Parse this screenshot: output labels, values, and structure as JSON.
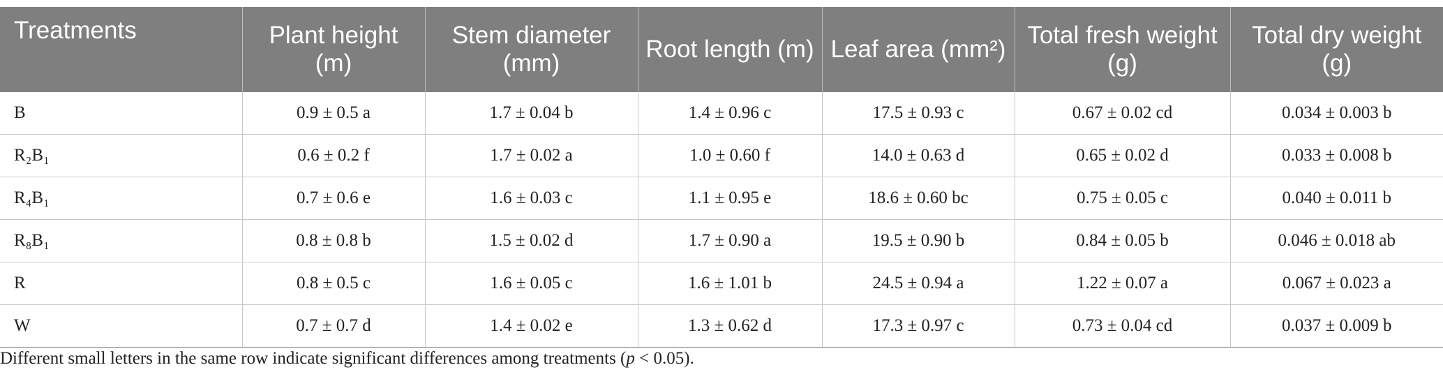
{
  "table": {
    "header": [
      "Treatments",
      "Plant height (m)",
      "Stem diameter (mm)",
      "Root length (m)",
      "Leaf area (mm²)",
      "Total fresh weight (g)",
      "Total dry weight (g)"
    ],
    "rows": [
      [
        "B",
        "0.9 ± 0.5 a",
        "1.7 ± 0.04 b",
        "1.4 ± 0.96 c",
        "17.5 ± 0.93 c",
        "0.67 ± 0.02 cd",
        "0.034 ± 0.003 b"
      ],
      [
        "R₂B₁",
        "0.6 ± 0.2 f",
        "1.7 ± 0.02 a",
        "1.0 ± 0.60 f",
        "14.0 ± 0.63 d",
        "0.65 ± 0.02 d",
        "0.033 ± 0.008 b"
      ],
      [
        "R₄B₁",
        "0.7 ± 0.6 e",
        "1.6 ± 0.03 c",
        "1.1 ± 0.95 e",
        "18.6 ± 0.60 bc",
        "0.75 ± 0.05 c",
        "0.040 ± 0.011 b"
      ],
      [
        "R₈B₁",
        "0.8 ± 0.8 b",
        "1.5 ± 0.02 d",
        "1.7 ± 0.90 a",
        "19.5 ± 0.90 b",
        "0.84 ± 0.05 b",
        "0.046 ± 0.018 ab"
      ],
      [
        "R",
        "0.8 ± 0.5 c",
        "1.6 ± 0.05 c",
        "1.6 ± 1.01 b",
        "24.5 ± 0.94 a",
        "1.22 ± 0.07 a",
        "0.067 ± 0.023 a"
      ],
      [
        "W",
        "0.7 ± 0.7 d",
        "1.4 ± 0.02 e",
        "1.3 ± 0.62 d",
        "17.3 ± 0.97 c",
        "0.73 ± 0.04 cd",
        "0.037 ± 0.009 b"
      ]
    ]
  },
  "footnote": [
    "Different small letters in the same row indicate significant differences among treatments (",
    "p",
    " < 0.05)."
  ]
}
